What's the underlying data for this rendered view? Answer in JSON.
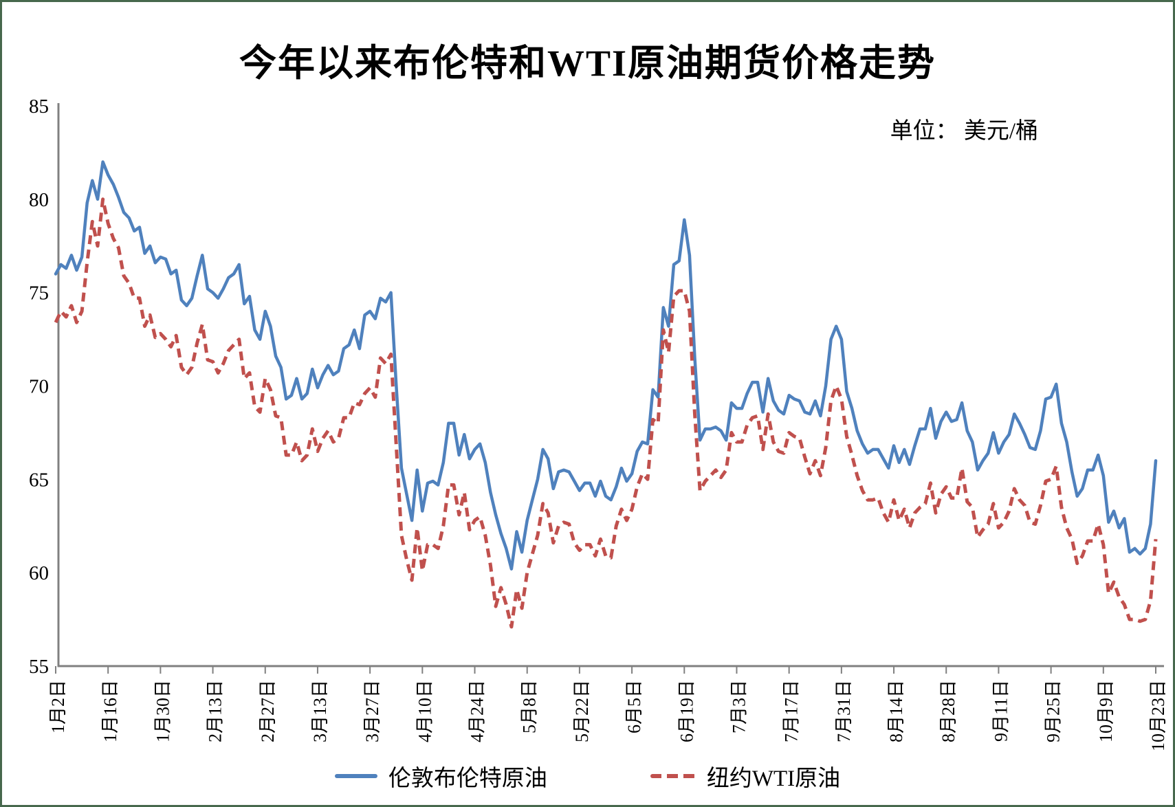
{
  "title": "今年以来布伦特和WTI原油期货价格走势",
  "unit_label": "单位： 美元/桶",
  "colors": {
    "brent": "#4F81BD",
    "wti": "#C0504D",
    "axis": "#808080",
    "text": "#000000",
    "frame": "#47684d"
  },
  "chart_data": {
    "type": "line",
    "title": "今年以来布伦特和WTI原油期货价格走势",
    "ylabel": "美元/桶",
    "ylim": [
      55,
      85
    ],
    "y_ticks": [
      55,
      60,
      65,
      70,
      75,
      80,
      85
    ],
    "grid": false,
    "legend_position": "bottom",
    "x_tick_labels": [
      "1月2日",
      "1月16日",
      "1月30日",
      "2月13日",
      "2月27日",
      "3月13日",
      "3月27日",
      "4月10日",
      "4月24日",
      "5月8日",
      "5月22日",
      "6月5日",
      "6月19日",
      "7月3日",
      "7月17日",
      "7月31日",
      "8月14日",
      "8月28日",
      "9月11日",
      "9月25日",
      "10月9日",
      "10月23日"
    ],
    "points_per_tick": 10,
    "series": [
      {
        "name": "伦敦布伦特原油",
        "color": "#4F81BD",
        "style": "solid",
        "values": [
          76.0,
          76.5,
          76.3,
          77.0,
          76.2,
          76.9,
          79.8,
          81.0,
          80.0,
          82.0,
          81.3,
          80.8,
          80.1,
          79.3,
          79.0,
          78.3,
          78.5,
          77.1,
          77.5,
          76.6,
          76.9,
          76.8,
          76.0,
          76.2,
          74.6,
          74.3,
          74.7,
          75.9,
          77.0,
          75.2,
          75.0,
          74.7,
          75.2,
          75.8,
          76.0,
          76.5,
          74.4,
          74.8,
          73.0,
          72.5,
          74.0,
          73.2,
          71.6,
          71.0,
          69.3,
          69.5,
          70.4,
          69.3,
          69.6,
          70.9,
          69.9,
          70.6,
          71.1,
          70.6,
          70.8,
          72.0,
          72.2,
          73.0,
          72.0,
          73.8,
          74.0,
          73.6,
          74.7,
          74.5,
          75.0,
          70.1,
          65.6,
          64.2,
          62.8,
          65.5,
          63.3,
          64.8,
          64.9,
          64.7,
          65.9,
          68.0,
          68.0,
          66.3,
          67.4,
          66.1,
          66.6,
          66.9,
          65.9,
          64.3,
          63.1,
          62.1,
          61.3,
          60.2,
          62.2,
          61.1,
          62.8,
          63.9,
          65.0,
          66.6,
          66.1,
          64.5,
          65.4,
          65.5,
          65.4,
          64.9,
          64.4,
          64.8,
          64.8,
          64.1,
          64.9,
          64.1,
          63.9,
          64.6,
          65.6,
          64.9,
          65.3,
          66.5,
          67.0,
          66.9,
          69.8,
          69.4,
          74.2,
          73.2,
          76.5,
          76.7,
          78.9,
          77.0,
          71.5,
          67.1,
          67.7,
          67.7,
          67.8,
          67.6,
          67.1,
          69.1,
          68.8,
          68.8,
          69.6,
          70.2,
          70.2,
          68.6,
          70.4,
          69.2,
          68.7,
          68.5,
          69.5,
          69.3,
          69.2,
          68.6,
          68.5,
          69.2,
          68.4,
          70.0,
          72.5,
          73.2,
          72.5,
          69.7,
          68.8,
          67.6,
          66.9,
          66.4,
          66.6,
          66.6,
          66.1,
          65.6,
          66.8,
          65.9,
          66.6,
          65.8,
          66.8,
          67.7,
          67.7,
          68.8,
          67.2,
          68.1,
          68.6,
          68.1,
          68.2,
          69.1,
          67.6,
          67.0,
          65.5,
          66.0,
          66.4,
          67.5,
          66.4,
          67.0,
          67.4,
          68.5,
          68.0,
          67.4,
          66.7,
          66.6,
          67.6,
          69.3,
          69.4,
          70.1,
          68.0,
          67.0,
          65.4,
          64.1,
          64.5,
          65.5,
          65.5,
          66.3,
          65.2,
          62.7,
          63.3,
          62.4,
          62.9,
          61.1,
          61.3,
          61.0,
          61.3,
          62.6,
          66.0
        ]
      },
      {
        "name": "纽约WTI原油",
        "color": "#C0504D",
        "style": "dashed",
        "values": [
          73.4,
          74.0,
          73.7,
          74.3,
          73.4,
          74.0,
          76.6,
          78.8,
          77.5,
          80.0,
          78.7,
          77.9,
          77.4,
          75.9,
          75.5,
          74.7,
          74.7,
          73.2,
          73.8,
          72.6,
          72.8,
          72.5,
          72.1,
          72.7,
          71.0,
          70.6,
          71.0,
          72.3,
          73.3,
          71.4,
          71.3,
          70.7,
          71.2,
          71.9,
          72.2,
          72.5,
          70.4,
          70.7,
          68.9,
          68.6,
          70.4,
          69.8,
          68.4,
          68.3,
          66.3,
          66.3,
          67.0,
          66.0,
          66.3,
          67.7,
          66.5,
          67.2,
          67.6,
          67.0,
          67.2,
          68.3,
          68.3,
          69.1,
          69.0,
          69.6,
          69.9,
          69.4,
          71.5,
          71.2,
          71.7,
          66.9,
          62.0,
          60.7,
          59.6,
          62.4,
          60.1,
          61.5,
          61.5,
          61.3,
          62.5,
          64.7,
          64.7,
          63.1,
          64.3,
          62.3,
          62.8,
          63.0,
          62.0,
          60.4,
          58.2,
          59.2,
          58.3,
          57.1,
          59.1,
          58.1,
          60.0,
          61.0,
          62.0,
          63.7,
          63.2,
          61.6,
          62.5,
          62.7,
          62.6,
          61.6,
          61.2,
          61.5,
          61.5,
          60.9,
          61.8,
          60.9,
          60.8,
          62.5,
          63.4,
          62.8,
          63.4,
          64.6,
          65.3,
          65.0,
          68.2,
          68.0,
          73.0,
          71.8,
          74.8,
          75.1,
          75.1,
          74.0,
          68.5,
          64.4,
          64.9,
          65.2,
          65.5,
          65.1,
          65.5,
          67.5,
          67.0,
          67.0,
          67.9,
          68.3,
          68.4,
          66.6,
          68.5,
          67.0,
          66.5,
          66.4,
          67.5,
          67.3,
          67.2,
          66.2,
          65.3,
          66.0,
          65.2,
          66.7,
          69.2,
          70.0,
          69.3,
          67.3,
          66.3,
          65.2,
          64.4,
          63.9,
          63.9,
          64.0,
          63.2,
          62.7,
          63.9,
          62.8,
          63.4,
          62.4,
          63.2,
          63.5,
          63.7,
          64.8,
          63.2,
          64.2,
          64.6,
          64.0,
          64.0,
          65.6,
          63.8,
          63.5,
          61.9,
          62.3,
          62.6,
          63.7,
          62.4,
          62.7,
          63.3,
          64.5,
          63.9,
          63.6,
          62.7,
          62.6,
          63.6,
          64.9,
          65.0,
          65.7,
          63.5,
          62.4,
          61.8,
          60.5,
          60.9,
          61.7,
          61.7,
          62.6,
          61.5,
          58.9,
          59.5,
          58.7,
          58.3,
          57.5,
          57.5,
          57.4,
          57.5,
          58.5,
          61.8
        ]
      }
    ]
  },
  "legend": {
    "brent_label": "伦敦布伦特原油",
    "wti_label": "纽约WTI原油"
  }
}
